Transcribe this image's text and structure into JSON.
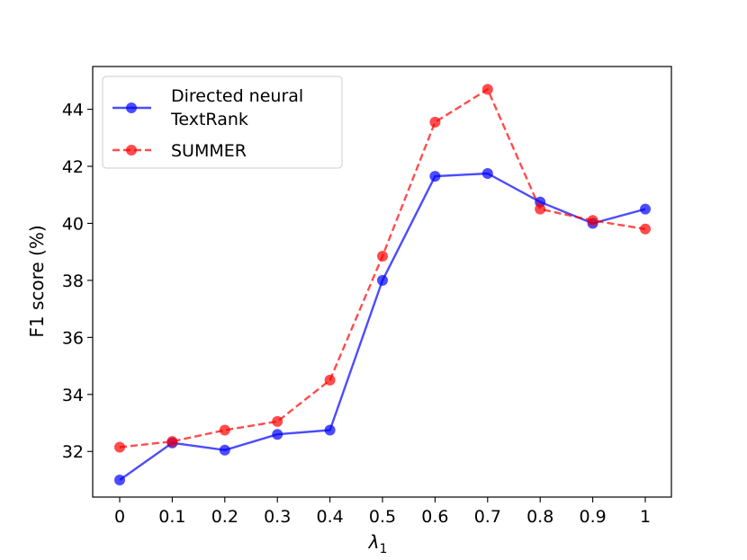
{
  "chart_data": {
    "type": "line",
    "x": [
      "0",
      "0.1",
      "0.2",
      "0.3",
      "0.4",
      "0.5",
      "0.6",
      "0.7",
      "0.8",
      "0.9",
      "1"
    ],
    "series": [
      {
        "name": "Directed neural TextRank",
        "legend_lines": [
          "Directed neural",
          "TextRank"
        ],
        "color": "#0000ff",
        "line_style": "solid",
        "values": [
          31.0,
          32.3,
          32.05,
          32.6,
          32.75,
          38.0,
          41.65,
          41.75,
          40.75,
          40.0,
          40.5
        ]
      },
      {
        "name": "SUMMER",
        "legend_lines": [
          "SUMMER"
        ],
        "color": "#ff0000",
        "line_style": "dashed",
        "values": [
          32.15,
          32.35,
          32.75,
          33.05,
          34.5,
          38.85,
          43.55,
          44.7,
          40.5,
          40.1,
          39.8
        ]
      }
    ],
    "xlabel_symbol": "λ",
    "xlabel_subscript": "1",
    "ylabel": "F1 score (%)",
    "ylim": [
      30.4,
      45.5
    ],
    "yticks": [
      32,
      34,
      36,
      38,
      40,
      42,
      44
    ],
    "grid": false,
    "legend_position": "top-left"
  }
}
